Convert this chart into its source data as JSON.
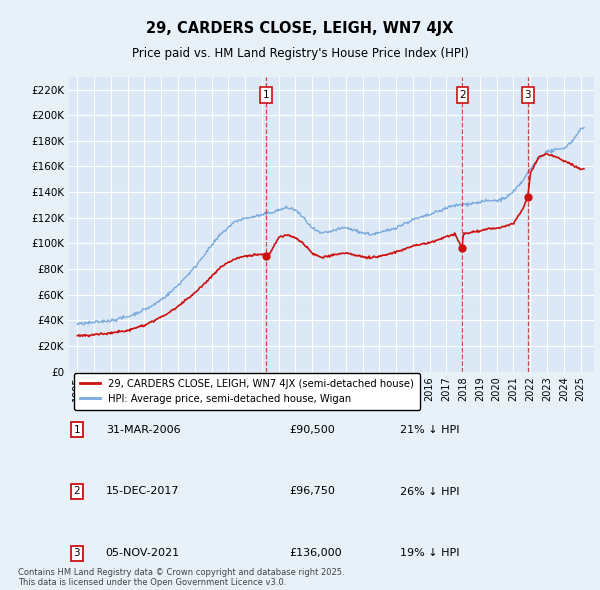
{
  "title": "29, CARDERS CLOSE, LEIGH, WN7 4JX",
  "subtitle": "Price paid vs. HM Land Registry's House Price Index (HPI)",
  "background_color": "#e8f0f8",
  "plot_bg_color": "#dce8f5",
  "grid_color": "#ffffff",
  "ylim": [
    0,
    230000
  ],
  "yticks": [
    0,
    20000,
    40000,
    60000,
    80000,
    100000,
    120000,
    140000,
    160000,
    180000,
    200000,
    220000
  ],
  "legend_red": "29, CARDERS CLOSE, LEIGH, WN7 4JX (semi-detached house)",
  "legend_blue": "HPI: Average price, semi-detached house, Wigan",
  "sale_years": [
    2006.25,
    2017.96,
    2021.85
  ],
  "sale_prices": [
    90500,
    96750,
    136000
  ],
  "sale_labels": [
    "1",
    "2",
    "3"
  ],
  "table_rows": [
    [
      "1",
      "31-MAR-2006",
      "£90,500",
      "21% ↓ HPI"
    ],
    [
      "2",
      "15-DEC-2017",
      "£96,750",
      "26% ↓ HPI"
    ],
    [
      "3",
      "05-NOV-2021",
      "£136,000",
      "19% ↓ HPI"
    ]
  ],
  "footer": "Contains HM Land Registry data © Crown copyright and database right 2025.\nThis data is licensed under the Open Government Licence v3.0.",
  "hpi_x": [
    1995.0,
    1995.5,
    1996.0,
    1996.5,
    1997.0,
    1997.5,
    1998.0,
    1998.5,
    1999.0,
    1999.5,
    2000.0,
    2000.5,
    2001.0,
    2001.5,
    2002.0,
    2002.5,
    2003.0,
    2003.5,
    2004.0,
    2004.5,
    2005.0,
    2005.5,
    2006.0,
    2006.5,
    2007.0,
    2007.5,
    2008.0,
    2008.5,
    2009.0,
    2009.5,
    2010.0,
    2010.5,
    2011.0,
    2011.5,
    2012.0,
    2012.5,
    2013.0,
    2013.5,
    2014.0,
    2014.5,
    2015.0,
    2015.5,
    2016.0,
    2016.5,
    2017.0,
    2017.5,
    2018.0,
    2018.5,
    2019.0,
    2019.5,
    2020.0,
    2020.5,
    2021.0,
    2021.5,
    2022.0,
    2022.5,
    2023.0,
    2023.5,
    2024.0,
    2024.5,
    2025.0
  ],
  "hpi_y": [
    37000,
    37500,
    38500,
    39500,
    40500,
    42000,
    43500,
    46000,
    49000,
    52000,
    57000,
    62000,
    68000,
    75000,
    82000,
    91000,
    99000,
    107000,
    113000,
    118000,
    120000,
    121000,
    122000,
    124000,
    126000,
    128000,
    126000,
    120000,
    112000,
    108000,
    109000,
    111000,
    112000,
    110000,
    108000,
    107000,
    108000,
    110000,
    112000,
    115000,
    118000,
    120000,
    122000,
    124000,
    127000,
    129000,
    130000,
    131000,
    132000,
    133000,
    133000,
    135000,
    140000,
    148000,
    158000,
    167000,
    172000,
    173000,
    175000,
    180000,
    190000
  ],
  "red_x": [
    1995.0,
    1995.5,
    1996.0,
    1996.5,
    1997.0,
    1997.5,
    1998.0,
    1998.5,
    1999.0,
    1999.5,
    2000.0,
    2000.5,
    2001.0,
    2001.5,
    2002.0,
    2002.5,
    2003.0,
    2003.5,
    2004.0,
    2004.5,
    2005.0,
    2005.5,
    2006.0,
    2006.25,
    2006.5,
    2007.0,
    2007.5,
    2008.0,
    2008.5,
    2009.0,
    2009.5,
    2010.0,
    2010.5,
    2011.0,
    2011.5,
    2012.0,
    2012.5,
    2013.0,
    2013.5,
    2014.0,
    2014.5,
    2015.0,
    2015.5,
    2016.0,
    2016.5,
    2017.0,
    2017.5,
    2017.96,
    2018.0,
    2018.5,
    2019.0,
    2019.5,
    2020.0,
    2020.5,
    2021.0,
    2021.5,
    2021.85,
    2022.0,
    2022.5,
    2023.0,
    2023.5,
    2024.0,
    2024.5,
    2025.0
  ],
  "red_y": [
    28000,
    28200,
    29000,
    29500,
    30500,
    31500,
    32500,
    34500,
    36500,
    39000,
    43000,
    46500,
    51000,
    56500,
    61500,
    68000,
    74500,
    80500,
    85000,
    88500,
    90000,
    91000,
    91500,
    90500,
    93000,
    105000,
    107000,
    105000,
    100000,
    93000,
    90000,
    90500,
    92000,
    93000,
    91500,
    90000,
    89500,
    90500,
    92000,
    94000,
    96000,
    98500,
    100000,
    101000,
    103000,
    106000,
    107500,
    96750,
    108000,
    109000,
    110000,
    112000,
    112000,
    113500,
    116000,
    126000,
    136000,
    155000,
    168000,
    170000,
    168000,
    165000,
    162000,
    158000
  ]
}
